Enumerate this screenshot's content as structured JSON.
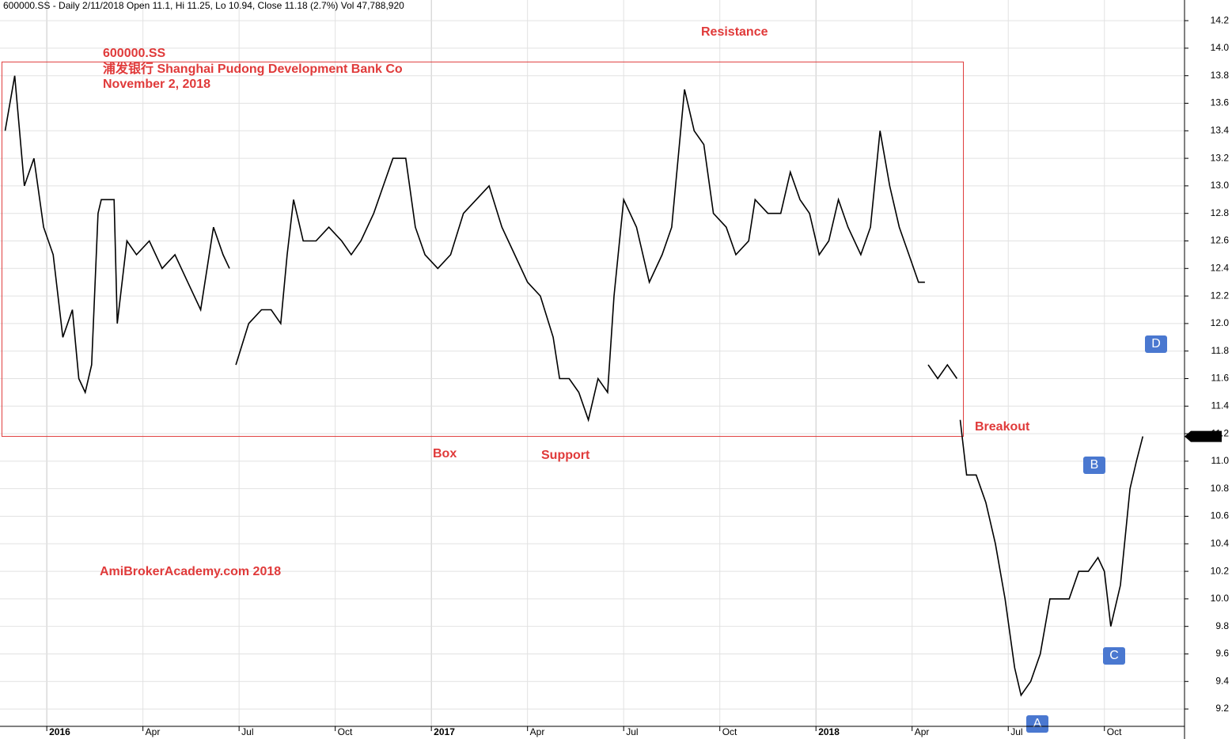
{
  "chart_data": {
    "type": "line",
    "header": "600000.SS - Daily 2/11/2018 Open 11.1, Hi 11.25, Lo 10.94, Close 11.18 (2.7%) Vol 47,788,920",
    "annotations": {
      "ticker": "600000.SS",
      "company": "浦发银行  Shanghai Pudong Development Bank Co",
      "date": "November 2, 2018",
      "resistance": "Resistance",
      "box": "Box",
      "support": "Support",
      "breakout": "Breakout",
      "credit": "AmiBrokerAcademy.com  2018",
      "point_a": "A",
      "point_b": "B",
      "point_c": "C",
      "point_d": "D"
    },
    "color": "#000000",
    "x": [
      -1.3,
      -1.0,
      -0.7,
      -0.4,
      -0.1,
      0.2,
      0.5,
      0.8,
      1.0,
      1.2,
      1.4,
      1.6,
      1.7,
      2.1,
      2.2,
      2.5,
      2.8,
      3.2,
      3.6,
      4.0,
      4.4,
      4.8,
      5.2,
      5.5,
      5.7,
      5.8,
      5.9,
      6.3,
      6.7,
      7.0,
      7.3,
      7.5,
      7.7,
      8.0,
      8.4,
      8.8,
      9.2,
      9.5,
      9.8,
      10.2,
      10.5,
      10.8,
      11.2,
      11.5,
      11.8,
      12.2,
      12.6,
      13.0,
      13.4,
      13.8,
      14.2,
      14.6,
      15.0,
      15.4,
      15.8,
      16.0,
      16.3,
      16.6,
      16.9,
      17.2,
      17.5,
      17.7,
      18.0,
      18.4,
      18.8,
      19.2,
      19.5,
      19.9,
      20.2,
      20.5,
      20.8,
      21.2,
      21.5,
      21.9,
      22.1,
      22.5,
      22.9,
      23.2,
      23.5,
      23.8,
      24.1,
      24.4,
      24.7,
      25.0,
      25.4,
      25.7,
      26.0,
      26.3,
      26.6,
      26.9,
      27.2,
      27.4,
      27.45,
      27.5,
      27.8,
      28.1,
      28.4,
      28.45,
      28.5,
      28.7,
      29.0,
      29.3,
      29.6,
      29.9,
      30.2,
      30.4,
      30.7,
      31.0,
      31.3,
      31.6,
      31.9,
      32.2,
      32.5,
      32.8,
      33.0,
      33.2,
      33.5,
      33.8,
      34.0,
      34.2
    ],
    "values": [
      13.4,
      13.8,
      13.0,
      13.2,
      12.7,
      12.5,
      11.9,
      12.1,
      11.6,
      11.5,
      11.7,
      12.8,
      12.9,
      12.9,
      12.0,
      12.6,
      12.5,
      12.6,
      12.4,
      12.5,
      12.3,
      12.1,
      12.7,
      12.5,
      12.4,
      null,
      11.7,
      12.0,
      12.1,
      12.1,
      12.0,
      12.5,
      12.9,
      12.6,
      12.6,
      12.7,
      12.6,
      12.5,
      12.6,
      12.8,
      13.0,
      13.2,
      13.2,
      12.7,
      12.5,
      12.4,
      12.5,
      12.8,
      12.9,
      13.0,
      12.7,
      12.5,
      12.3,
      12.2,
      11.9,
      11.6,
      11.6,
      11.5,
      11.3,
      11.6,
      11.5,
      12.2,
      12.9,
      12.7,
      12.3,
      12.5,
      12.7,
      13.7,
      13.4,
      13.3,
      12.8,
      12.7,
      12.5,
      12.6,
      12.9,
      12.8,
      12.8,
      13.1,
      12.9,
      12.8,
      12.5,
      12.6,
      12.9,
      12.7,
      12.5,
      12.7,
      13.4,
      13.0,
      12.7,
      12.5,
      12.3,
      12.3,
      null,
      11.7,
      11.6,
      11.7,
      11.6,
      null,
      11.3,
      10.9,
      10.9,
      10.7,
      10.4,
      10.0,
      9.5,
      9.3,
      9.4,
      9.6,
      10.0,
      10.0,
      10.0,
      10.2,
      10.2,
      10.3,
      10.2,
      9.8,
      10.1,
      10.8,
      11.0,
      11.18
    ],
    "last_value": 11.18,
    "box": {
      "x": [
        -1.4,
        28.6
      ],
      "y": [
        11.18,
        13.9
      ]
    },
    "xlim": [
      -1.46,
      35.5
    ],
    "ylim": [
      9.074,
      14.35
    ],
    "xticks": [
      {
        "value": 0,
        "label": "2016"
      },
      {
        "value": 3,
        "label": "Apr"
      },
      {
        "value": 6,
        "label": "Jul"
      },
      {
        "value": 9,
        "label": "Oct"
      },
      {
        "value": 12,
        "label": "2017"
      },
      {
        "value": 15,
        "label": "Apr"
      },
      {
        "value": 18,
        "label": "Jul"
      },
      {
        "value": 21,
        "label": "Oct"
      },
      {
        "value": 24,
        "label": "2018"
      },
      {
        "value": 27,
        "label": "Apr"
      },
      {
        "value": 30,
        "label": "Jul"
      },
      {
        "value": 33,
        "label": "Oct"
      }
    ],
    "yticks": [
      9.2,
      9.4,
      9.6,
      9.8,
      {
        "value": 10,
        "label": "10.0"
      },
      10.2,
      10.4,
      10.6,
      10.8,
      {
        "value": 11,
        "label": "11.0"
      },
      11.2,
      11.4,
      11.6,
      11.8,
      {
        "value": 12,
        "label": "12.0"
      },
      12.2,
      12.4,
      12.6,
      12.8,
      {
        "value": 13,
        "label": "13.0"
      },
      13.2,
      13.4,
      13.6,
      13.8,
      {
        "value": 14,
        "label": "14.0"
      },
      14.2
    ],
    "grid": true
  }
}
